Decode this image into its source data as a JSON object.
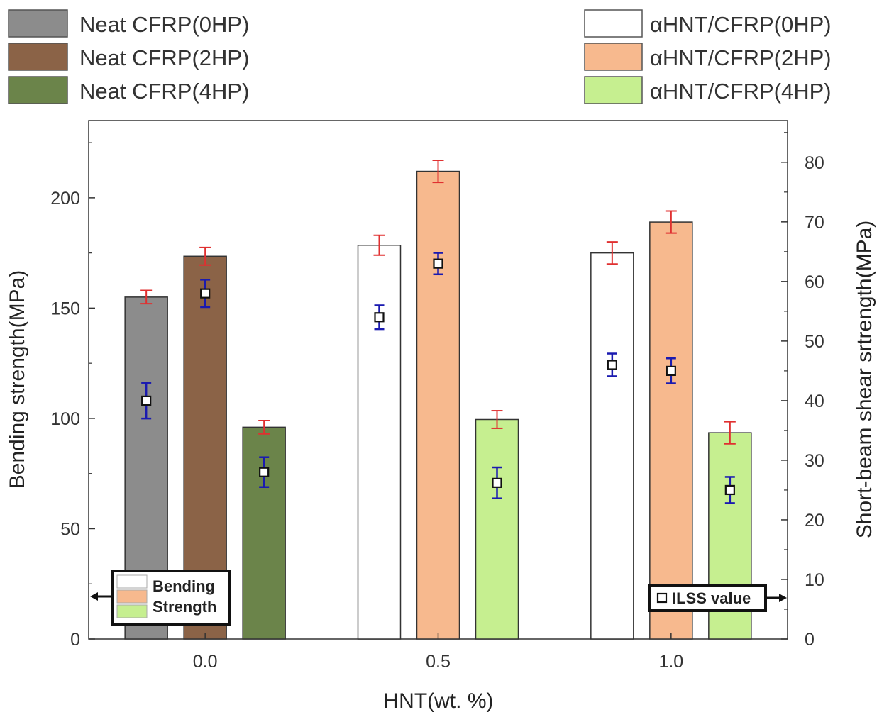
{
  "chart_data": {
    "type": "bar",
    "title": "",
    "xlabel": "HNT(wt. %)",
    "ylabel": "Bending strength(MPa)",
    "y2label": "Short-beam shear srtrength(MPa)",
    "categories": [
      "0.0",
      "0.5",
      "1.0"
    ],
    "xlim": [
      -0.25,
      1.25
    ],
    "ylim": [
      0,
      235
    ],
    "y2lim": [
      0,
      87
    ],
    "yticks": [
      0,
      50,
      100,
      150,
      200
    ],
    "y2ticks": [
      0,
      10,
      20,
      30,
      40,
      50,
      60,
      70,
      80
    ],
    "grid": false,
    "series": [
      {
        "name": "Neat CFRP(0HP)",
        "color": "#8c8c8c",
        "category": "0.0",
        "slot": 0,
        "bending": 155,
        "bending_err": 3,
        "ilss": 40,
        "ilss_err": 3
      },
      {
        "name": "Neat CFRP(2HP)",
        "color": "#8b6347",
        "category": "0.0",
        "slot": 1,
        "bending": 173.5,
        "bending_err": 4,
        "ilss": 58,
        "ilss_err": 2.3
      },
      {
        "name": "Neat CFRP(4HP)",
        "color": "#6b844a",
        "category": "0.0",
        "slot": 2,
        "bending": 96,
        "bending_err": 3,
        "ilss": 28,
        "ilss_err": 2.5
      },
      {
        "name": "αHNT/CFRP(0HP)",
        "color": "#ffffff",
        "category": "0.5",
        "slot": 0,
        "bending": 178.5,
        "bending_err": 4.5,
        "ilss": 54,
        "ilss_err": 2
      },
      {
        "name": "αHNT/CFRP(2HP)",
        "color": "#f7b98e",
        "category": "0.5",
        "slot": 1,
        "bending": 212,
        "bending_err": 5,
        "ilss": 63,
        "ilss_err": 1.8
      },
      {
        "name": "αHNT/CFRP(4HP)",
        "color": "#c6ef90",
        "category": "0.5",
        "slot": 2,
        "bending": 99.5,
        "bending_err": 4,
        "ilss": 26.2,
        "ilss_err": 2.6
      },
      {
        "name": "αHNT/CFRP(0HP)",
        "color": "#ffffff",
        "category": "1.0",
        "slot": 0,
        "bending": 175,
        "bending_err": 5,
        "ilss": 46,
        "ilss_err": 1.9
      },
      {
        "name": "αHNT/CFRP(2HP)",
        "color": "#f7b98e",
        "category": "1.0",
        "slot": 1,
        "bending": 189,
        "bending_err": 5,
        "ilss": 45,
        "ilss_err": 2.1
      },
      {
        "name": "αHNT/CFRP(4HP)",
        "color": "#c6ef90",
        "category": "1.0",
        "slot": 2,
        "bending": 93.5,
        "bending_err": 5,
        "ilss": 25,
        "ilss_err": 2.2
      }
    ],
    "legend": {
      "placement": "top",
      "left": [
        {
          "label": "Neat CFRP(0HP)",
          "color": "#8c8c8c"
        },
        {
          "label": "Neat CFRP(2HP)",
          "color": "#8b6347"
        },
        {
          "label": "Neat CFRP(4HP)",
          "color": "#6b844a"
        }
      ],
      "right": [
        {
          "label": "αHNT/CFRP(0HP)",
          "color": "#ffffff"
        },
        {
          "label": "αHNT/CFRP(2HP)",
          "color": "#f7b98e"
        },
        {
          "label": "αHNT/CFRP(4HP)",
          "color": "#c6ef90"
        }
      ]
    },
    "inset_left": {
      "line1": "Bending",
      "line2": "Strength"
    },
    "inset_right": {
      "label": "ILSS  value"
    },
    "colors": {
      "bending_error": "#e03030",
      "ilss_error": "#1a1ab0"
    }
  }
}
